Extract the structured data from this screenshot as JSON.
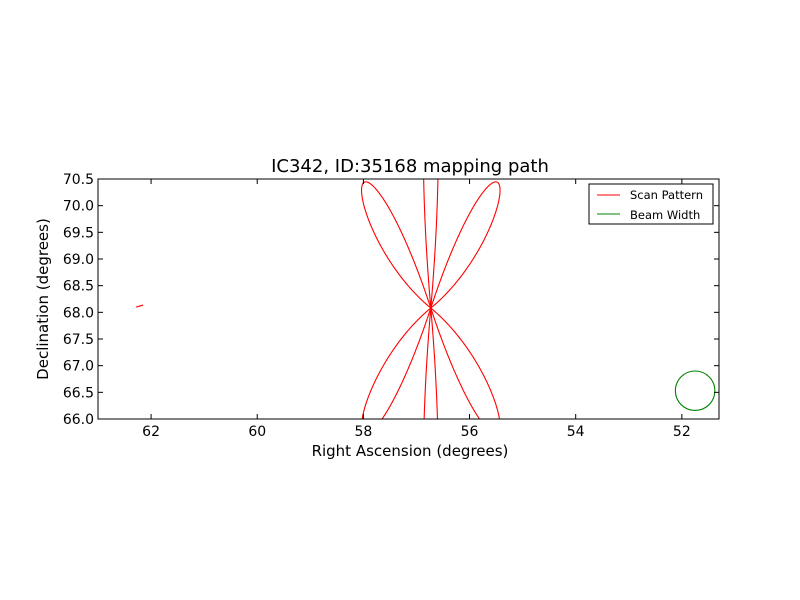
{
  "chart_data": {
    "type": "line",
    "title": "IC342, ID:35168 mapping path",
    "xlabel": "Right Ascension (degrees)",
    "ylabel": "Declination (degrees)",
    "xlim": [
      63.0,
      51.3
    ],
    "ylim": [
      66.0,
      70.5
    ],
    "x_ticks": [
      62,
      60,
      58,
      56,
      54,
      52
    ],
    "y_ticks": [
      66.0,
      66.5,
      67.0,
      67.5,
      68.0,
      68.5,
      69.0,
      69.5,
      70.0,
      70.5
    ],
    "legend_position": "top-right",
    "grid": false,
    "series": [
      {
        "name": "Scan Pattern",
        "color": "#ff0000",
        "kind": "rose-scan",
        "center": [
          56.73,
          68.08
        ],
        "petals": [
          {
            "angle_deg": 90,
            "ra_half_extent": 1.5,
            "dec_half_extent": 4.56
          },
          {
            "angle_deg": 30,
            "ra_half_extent": 1.5,
            "dec_half_extent": 4.56
          },
          {
            "angle_deg": -30,
            "ra_half_extent": 1.5,
            "dec_half_extent": 4.56
          },
          {
            "angle_deg": -90,
            "ra_half_extent": 1.5,
            "dec_half_extent": 4.56
          },
          {
            "angle_deg": -150,
            "ra_half_extent": 1.5,
            "dec_half_extent": 4.56
          },
          {
            "angle_deg": 150,
            "ra_half_extent": 1.5,
            "dec_half_extent": 4.56
          }
        ]
      },
      {
        "name": "Beam Width",
        "color": "#008000",
        "kind": "circle",
        "center": [
          51.75,
          66.53
        ],
        "radius_dec": 0.37
      }
    ]
  }
}
